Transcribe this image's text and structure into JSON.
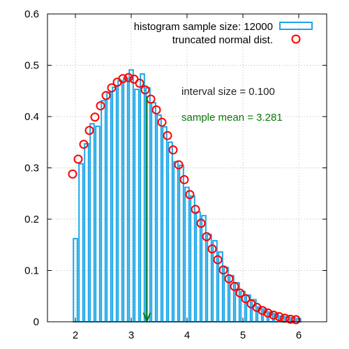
{
  "chart_data": {
    "type": "bar",
    "title": "",
    "xlabel": "",
    "ylabel": "",
    "xlim": [
      1.5,
      6.5
    ],
    "ylim": [
      0,
      0.6
    ],
    "xticks": [
      2,
      3,
      4,
      5,
      6
    ],
    "yticks": [
      0,
      0.1,
      0.2,
      0.3,
      0.4,
      0.5,
      0.6
    ],
    "xtick_labels": [
      "2",
      "3",
      "4",
      "5",
      "6"
    ],
    "ytick_labels": [
      "0",
      "0.1",
      "0.2",
      "0.3",
      "0.4",
      "0.5",
      "0.6"
    ],
    "grid": true,
    "legend_position": "top-right",
    "series": [
      {
        "name": "histogram sample size: 12000",
        "type": "histogram",
        "color": "#1aa6e8",
        "bin_width": 0.1,
        "x": [
          2.0,
          2.1,
          2.2,
          2.3,
          2.4,
          2.5,
          2.6,
          2.7,
          2.8,
          2.9,
          3.0,
          3.1,
          3.2,
          3.3,
          3.4,
          3.5,
          3.6,
          3.7,
          3.8,
          3.9,
          4.0,
          4.1,
          4.2,
          4.3,
          4.4,
          4.5,
          4.6,
          4.7,
          4.8,
          4.9,
          5.0,
          5.1,
          5.2,
          5.3,
          5.4,
          5.5,
          5.6,
          5.7,
          5.8,
          5.9,
          6.0
        ],
        "y": [
          0.162,
          0.308,
          0.347,
          0.386,
          0.381,
          0.431,
          0.447,
          0.457,
          0.47,
          0.475,
          0.491,
          0.453,
          0.483,
          0.456,
          0.427,
          0.403,
          0.38,
          0.35,
          0.312,
          0.305,
          0.262,
          0.245,
          0.214,
          0.207,
          0.17,
          0.158,
          0.136,
          0.106,
          0.09,
          0.076,
          0.059,
          0.052,
          0.043,
          0.029,
          0.025,
          0.019,
          0.016,
          0.011,
          0.01,
          0.008,
          0.006
        ]
      },
      {
        "name": "truncated normal dist.",
        "type": "scatter",
        "marker": "circle",
        "color": "#ff0000",
        "x": [
          1.95,
          2.05,
          2.15,
          2.25,
          2.35,
          2.45,
          2.55,
          2.65,
          2.75,
          2.85,
          2.95,
          3.05,
          3.15,
          3.25,
          3.35,
          3.45,
          3.55,
          3.65,
          3.75,
          3.85,
          3.95,
          4.05,
          4.15,
          4.25,
          4.35,
          4.45,
          4.55,
          4.65,
          4.75,
          4.85,
          4.95,
          5.05,
          5.15,
          5.25,
          5.35,
          5.45,
          5.55,
          5.65,
          5.75,
          5.85,
          5.95
        ],
        "y": [
          0.288,
          0.317,
          0.346,
          0.373,
          0.399,
          0.421,
          0.441,
          0.456,
          0.467,
          0.474,
          0.476,
          0.473,
          0.465,
          0.452,
          0.434,
          0.413,
          0.389,
          0.363,
          0.335,
          0.306,
          0.277,
          0.248,
          0.219,
          0.192,
          0.166,
          0.142,
          0.121,
          0.101,
          0.084,
          0.069,
          0.056,
          0.045,
          0.035,
          0.028,
          0.022,
          0.017,
          0.013,
          0.01,
          0.007,
          0.005,
          0.004
        ]
      }
    ],
    "annotations": [
      {
        "text": "interval size = 0.100",
        "color": "#222222"
      },
      {
        "text": "sample mean = 3.281",
        "color": "#0a7a0a"
      }
    ],
    "mean_arrow": {
      "x": 3.281,
      "y_from": 0.44,
      "y_to": 0.0,
      "color": "#0a7a0a"
    }
  }
}
